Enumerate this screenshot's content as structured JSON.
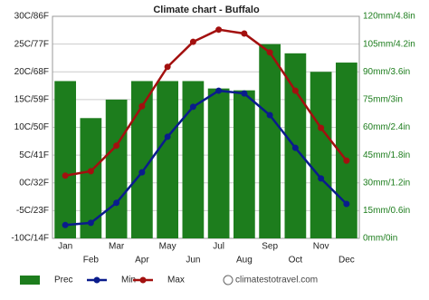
{
  "chart_data": {
    "type": "bar_line",
    "title": "Climate chart - Buffalo",
    "categories": [
      "Jan",
      "Feb",
      "Mar",
      "Apr",
      "May",
      "Jun",
      "Jul",
      "Aug",
      "Sep",
      "Oct",
      "Nov",
      "Dec"
    ],
    "series": [
      {
        "name": "Prec",
        "color": "#1d7d1d",
        "axis": "y2",
        "kind": "bar",
        "values": [
          85,
          65,
          75,
          85,
          85,
          85,
          81,
          80,
          105,
          100,
          90,
          95
        ]
      },
      {
        "name": "Min",
        "color": "#0a1c8c",
        "kind": "line",
        "values": [
          -7.6,
          -7.2,
          -3.6,
          1.9,
          8.3,
          13.7,
          16.6,
          16.1,
          12.2,
          6.3,
          0.8,
          -3.8
        ]
      },
      {
        "name": "Max",
        "color": "#a3100f",
        "kind": "line",
        "values": [
          1.3,
          2.1,
          6.7,
          13.8,
          20.9,
          25.4,
          27.6,
          26.9,
          23.5,
          16.6,
          9.9,
          4.0
        ]
      }
    ],
    "ylim": [
      -10,
      30
    ],
    "yticks": [
      {
        "value": -10,
        "label": "-10C/14F"
      },
      {
        "value": -5,
        "label": "-5C/23F"
      },
      {
        "value": 0,
        "label": "0C/32F"
      },
      {
        "value": 5,
        "label": "5C/41F"
      },
      {
        "value": 10,
        "label": "10C/50F"
      },
      {
        "value": 15,
        "label": "15C/59F"
      },
      {
        "value": 20,
        "label": "20C/68F"
      },
      {
        "value": 25,
        "label": "25C/77F"
      },
      {
        "value": 30,
        "label": "30C/86F"
      }
    ],
    "y2lim": [
      0,
      120
    ],
    "y2ticks": [
      {
        "value": 0,
        "label": "0mm/0in"
      },
      {
        "value": 15,
        "label": "15mm/0.6in"
      },
      {
        "value": 30,
        "label": "30mm/1.2in"
      },
      {
        "value": 45,
        "label": "45mm/1.8in"
      },
      {
        "value": 60,
        "label": "60mm/2.4in"
      },
      {
        "value": 75,
        "label": "75mm/3in"
      },
      {
        "value": 90,
        "label": "90mm/3.6in"
      },
      {
        "value": 105,
        "label": "105mm/4.2in"
      },
      {
        "value": 120,
        "label": "120mm/4.8in"
      }
    ],
    "grid": true,
    "watermark": "climatestotravel.com"
  }
}
